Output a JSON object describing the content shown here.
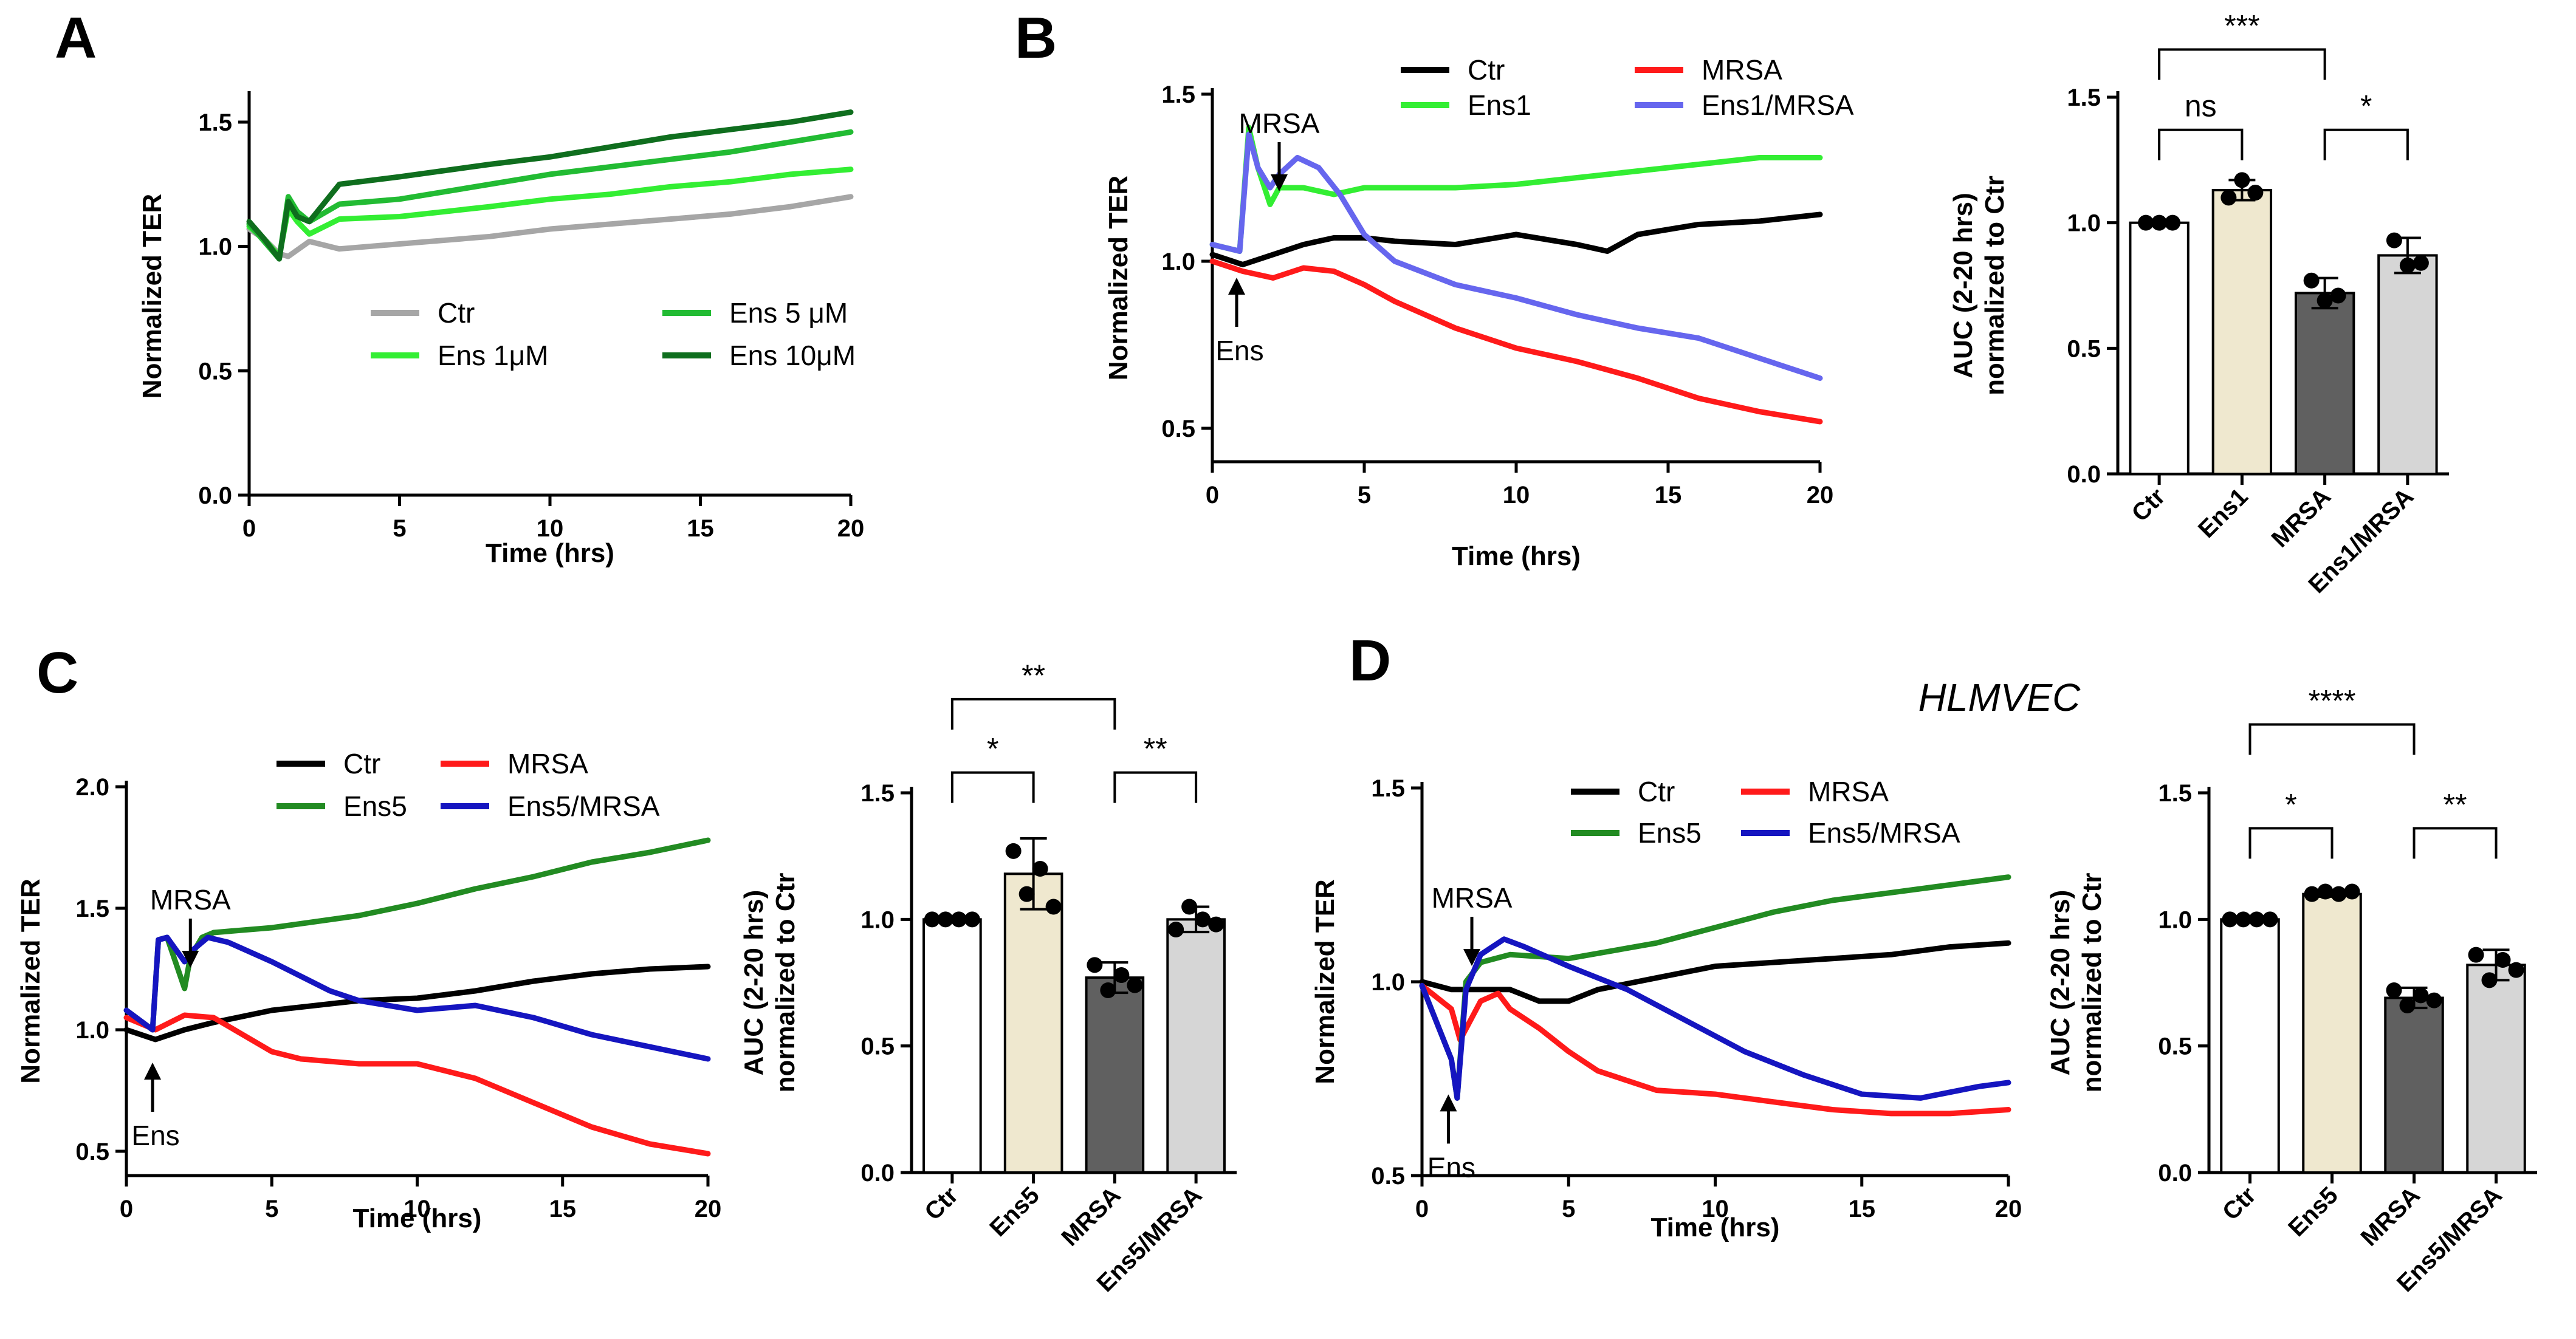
{
  "figure": {
    "extra_label": "HLMVEC"
  },
  "chart_data": [
    {
      "id": "A",
      "panel_label": "A",
      "type": "line",
      "xlabel": "Time (hrs)",
      "ylabel": "Normalized TER",
      "xlim": [
        0,
        20
      ],
      "ylim": [
        0,
        1.6
      ],
      "xticks": [
        0,
        5,
        10,
        15,
        20
      ],
      "yticks": [
        0.0,
        0.5,
        1.0,
        1.5
      ],
      "ytick_labels": [
        "0.0",
        "0.5",
        "1.0",
        "1.5"
      ],
      "legend_cols": 2,
      "series": [
        {
          "name": "Ctr",
          "color": "#a6a6a6",
          "x": [
            0,
            0.5,
            1.0,
            1.3,
            2.0,
            3.0,
            5,
            8,
            10,
            12,
            14,
            16,
            18,
            20
          ],
          "y": [
            1.07,
            1.03,
            0.97,
            0.96,
            1.02,
            0.99,
            1.01,
            1.04,
            1.07,
            1.09,
            1.11,
            1.13,
            1.16,
            1.2
          ]
        },
        {
          "name": "Ens 1μM",
          "color": "#33ee33",
          "x": [
            0,
            0.5,
            1.0,
            1.3,
            1.6,
            2.0,
            3.0,
            5,
            8,
            10,
            12,
            14,
            16,
            18,
            20
          ],
          "y": [
            1.08,
            1.03,
            0.96,
            1.15,
            1.1,
            1.05,
            1.11,
            1.12,
            1.16,
            1.19,
            1.21,
            1.24,
            1.26,
            1.29,
            1.31
          ]
        },
        {
          "name": "Ens 5 μM",
          "color": "#22bb33",
          "x": [
            0,
            0.5,
            1.0,
            1.3,
            1.6,
            2.0,
            3.0,
            5,
            8,
            10,
            12,
            14,
            16,
            18,
            20
          ],
          "y": [
            1.09,
            1.02,
            0.95,
            1.2,
            1.14,
            1.1,
            1.17,
            1.19,
            1.25,
            1.29,
            1.32,
            1.35,
            1.38,
            1.42,
            1.46
          ]
        },
        {
          "name": "Ens 10μM",
          "color": "#0f6e1e",
          "x": [
            0,
            0.5,
            1.0,
            1.3,
            1.6,
            2.0,
            3.0,
            5,
            8,
            10,
            12,
            14,
            16,
            18,
            20
          ],
          "y": [
            1.1,
            1.03,
            0.95,
            1.18,
            1.12,
            1.1,
            1.25,
            1.28,
            1.33,
            1.36,
            1.4,
            1.44,
            1.47,
            1.5,
            1.54
          ]
        }
      ]
    },
    {
      "id": "B_line",
      "panel_label": "B",
      "type": "line",
      "xlabel": "Time (hrs)",
      "ylabel": "Normalized TER",
      "xlim": [
        0,
        20
      ],
      "ylim": [
        0.4,
        1.5
      ],
      "xticks": [
        0,
        5,
        10,
        15,
        20
      ],
      "yticks": [
        0.5,
        1.0,
        1.5
      ],
      "ytick_labels": [
        "0.5",
        "1.0",
        "1.5"
      ],
      "legend_cols": 2,
      "annotations": [
        {
          "text": "MRSA",
          "x": 2.2,
          "y": 1.22,
          "dir": "down"
        },
        {
          "text": "Ens",
          "x": 0.8,
          "y": 0.94,
          "dir": "up"
        }
      ],
      "series": [
        {
          "name": "Ctr",
          "color": "#000000",
          "x": [
            0,
            1,
            2,
            3,
            4,
            5,
            6,
            8,
            10,
            12,
            13,
            14,
            16,
            18,
            20
          ],
          "y": [
            1.02,
            0.99,
            1.02,
            1.05,
            1.07,
            1.07,
            1.06,
            1.05,
            1.08,
            1.05,
            1.03,
            1.08,
            1.11,
            1.12,
            1.14
          ]
        },
        {
          "name": "MRSA",
          "color": "#ff1a1a",
          "x": [
            0,
            1,
            2,
            3,
            4,
            5,
            6,
            8,
            10,
            12,
            14,
            16,
            18,
            20
          ],
          "y": [
            1.0,
            0.97,
            0.95,
            0.98,
            0.97,
            0.93,
            0.88,
            0.8,
            0.74,
            0.7,
            0.65,
            0.59,
            0.55,
            0.52
          ]
        },
        {
          "name": "Ens1",
          "color": "#33ee33",
          "x": [
            0,
            0.9,
            1.2,
            1.5,
            1.9,
            2.2,
            3,
            4,
            5,
            8,
            10,
            12,
            14,
            16,
            18,
            20
          ],
          "y": [
            1.05,
            1.03,
            1.4,
            1.28,
            1.17,
            1.22,
            1.22,
            1.2,
            1.22,
            1.22,
            1.23,
            1.25,
            1.27,
            1.29,
            1.31,
            1.31
          ]
        },
        {
          "name": "Ens1/MRSA",
          "color": "#6666ee",
          "x": [
            0,
            0.9,
            1.2,
            1.5,
            1.9,
            2.2,
            2.8,
            3.5,
            4.2,
            5,
            6,
            8,
            10,
            12,
            14,
            16,
            18,
            20
          ],
          "y": [
            1.05,
            1.03,
            1.38,
            1.28,
            1.22,
            1.26,
            1.31,
            1.28,
            1.2,
            1.08,
            1.0,
            0.93,
            0.89,
            0.84,
            0.8,
            0.77,
            0.71,
            0.65
          ]
        }
      ]
    },
    {
      "id": "B_bar",
      "type": "bar",
      "ylabel_lines": [
        "AUC (2-20 hrs)",
        "normalized to Ctr"
      ],
      "ylim": [
        0,
        1.5
      ],
      "yticks": [
        0.0,
        0.5,
        1.0,
        1.5
      ],
      "ytick_labels": [
        "0.0",
        "0.5",
        "1.0",
        "1.5"
      ],
      "categories": [
        "Ctr",
        "Ens1",
        "MRSA",
        "Ens1/MRSA"
      ],
      "values": [
        1.0,
        1.13,
        0.72,
        0.87
      ],
      "errors": [
        0.0,
        0.04,
        0.06,
        0.07
      ],
      "bar_colors": [
        "#ffffff",
        "#efe8cf",
        "#606060",
        "#d6d6d6"
      ],
      "points": [
        [
          1.0,
          1.0,
          1.0
        ],
        [
          1.1,
          1.17,
          1.12
        ],
        [
          0.77,
          0.69,
          0.71
        ],
        [
          0.93,
          0.83,
          0.84
        ]
      ],
      "significance": [
        {
          "from": 0,
          "to": 2,
          "label": "***",
          "y": 1.69
        },
        {
          "from": 0,
          "to": 1,
          "label": "ns",
          "y": 1.37
        },
        {
          "from": 2,
          "to": 3,
          "label": "*",
          "y": 1.37
        }
      ]
    },
    {
      "id": "C_line",
      "panel_label": "C",
      "type": "line",
      "xlabel": "Time (hrs)",
      "ylabel": "Normalized TER",
      "xlim": [
        0,
        20
      ],
      "ylim": [
        0.4,
        2.0
      ],
      "xticks": [
        0,
        5,
        10,
        15,
        20
      ],
      "yticks": [
        0.5,
        1.0,
        1.5,
        2.0
      ],
      "ytick_labels": [
        "0.5",
        "1.0",
        "1.5",
        "2.0"
      ],
      "legend_cols": 2,
      "annotations": [
        {
          "text": "MRSA",
          "x": 2.2,
          "y": 1.27,
          "dir": "down"
        },
        {
          "text": "Ens",
          "x": 0.9,
          "y": 0.85,
          "dir": "up"
        }
      ],
      "series": [
        {
          "name": "Ctr",
          "color": "#000000",
          "x": [
            0,
            1,
            2,
            3,
            5,
            8,
            10,
            12,
            14,
            16,
            18,
            20
          ],
          "y": [
            1.0,
            0.96,
            1.0,
            1.03,
            1.08,
            1.12,
            1.13,
            1.16,
            1.2,
            1.23,
            1.25,
            1.26
          ]
        },
        {
          "name": "MRSA",
          "color": "#ff1a1a",
          "x": [
            0,
            1,
            2,
            3,
            4,
            5,
            6,
            8,
            10,
            12,
            14,
            16,
            18,
            20
          ],
          "y": [
            1.05,
            1.0,
            1.06,
            1.05,
            0.98,
            0.91,
            0.88,
            0.86,
            0.86,
            0.8,
            0.7,
            0.6,
            0.53,
            0.49
          ]
        },
        {
          "name": "Ens5",
          "color": "#228b22",
          "x": [
            0,
            0.9,
            1.1,
            1.4,
            2.0,
            2.2,
            2.6,
            3.0,
            5,
            8,
            10,
            12,
            14,
            16,
            18,
            20
          ],
          "y": [
            1.08,
            1.0,
            1.37,
            1.38,
            1.17,
            1.3,
            1.38,
            1.4,
            1.42,
            1.47,
            1.52,
            1.58,
            1.63,
            1.69,
            1.73,
            1.78
          ]
        },
        {
          "name": "Ens5/MRSA",
          "color": "#1515c0",
          "x": [
            0,
            0.9,
            1.1,
            1.4,
            2.0,
            2.3,
            2.8,
            3.5,
            5,
            7,
            8,
            10,
            12,
            14,
            16,
            18,
            20
          ],
          "y": [
            1.08,
            1.0,
            1.37,
            1.38,
            1.28,
            1.33,
            1.38,
            1.36,
            1.28,
            1.16,
            1.12,
            1.08,
            1.1,
            1.05,
            0.98,
            0.93,
            0.88
          ]
        }
      ]
    },
    {
      "id": "C_bar",
      "type": "bar",
      "ylabel_lines": [
        "AUC (2-20 hrs)",
        "normalized to Ctr"
      ],
      "ylim": [
        0,
        1.5
      ],
      "yticks": [
        0.0,
        0.5,
        1.0,
        1.5
      ],
      "ytick_labels": [
        "0.0",
        "0.5",
        "1.0",
        "1.5"
      ],
      "categories": [
        "Ctr",
        "Ens5",
        "MRSA",
        "Ens5/MRSA"
      ],
      "values": [
        1.0,
        1.18,
        0.77,
        1.0
      ],
      "errors": [
        0.0,
        0.14,
        0.06,
        0.05
      ],
      "bar_colors": [
        "#ffffff",
        "#efe8cf",
        "#606060",
        "#d6d6d6"
      ],
      "points": [
        [
          1.0,
          1.0,
          1.0,
          1.0
        ],
        [
          1.27,
          1.1,
          1.2,
          1.05
        ],
        [
          0.82,
          0.72,
          0.78,
          0.74
        ],
        [
          0.96,
          1.05,
          1.0,
          0.98
        ]
      ],
      "significance": [
        {
          "from": 0,
          "to": 2,
          "label": "**",
          "y": 1.87
        },
        {
          "from": 0,
          "to": 1,
          "label": "*",
          "y": 1.58
        },
        {
          "from": 2,
          "to": 3,
          "label": "**",
          "y": 1.58
        }
      ]
    },
    {
      "id": "D_line",
      "panel_label": "D",
      "type": "line",
      "xlabel": "Time (hrs)",
      "ylabel": "Normalized TER",
      "xlim": [
        0,
        20
      ],
      "ylim": [
        0.5,
        1.5
      ],
      "xticks": [
        0,
        5,
        10,
        15,
        20
      ],
      "yticks": [
        0.5,
        1.0,
        1.5
      ],
      "ytick_labels": [
        "0.5",
        "1.0",
        "1.5"
      ],
      "legend_cols": 2,
      "annotations": [
        {
          "text": "MRSA",
          "x": 1.7,
          "y": 1.05,
          "dir": "down"
        },
        {
          "text": "Ens",
          "x": 0.9,
          "y": 0.7,
          "dir": "up"
        }
      ],
      "series": [
        {
          "name": "Ctr",
          "color": "#000000",
          "x": [
            0,
            1,
            2,
            3,
            4,
            5,
            6,
            8,
            10,
            12,
            14,
            16,
            18,
            20
          ],
          "y": [
            1.0,
            0.98,
            0.98,
            0.98,
            0.95,
            0.95,
            0.98,
            1.01,
            1.04,
            1.05,
            1.06,
            1.07,
            1.09,
            1.1
          ]
        },
        {
          "name": "MRSA",
          "color": "#ff1a1a",
          "x": [
            0,
            1,
            1.3,
            2,
            2.6,
            3,
            4,
            5,
            6,
            8,
            10,
            12,
            14,
            16,
            18,
            20
          ],
          "y": [
            0.99,
            0.93,
            0.85,
            0.95,
            0.97,
            0.93,
            0.88,
            0.82,
            0.77,
            0.72,
            0.71,
            0.69,
            0.67,
            0.66,
            0.66,
            0.67
          ]
        },
        {
          "name": "Ens5",
          "color": "#228b22",
          "x": [
            0,
            1.0,
            1.2,
            1.5,
            2.0,
            3,
            5,
            8,
            10,
            12,
            14,
            16,
            18,
            20
          ],
          "y": [
            0.99,
            0.8,
            0.7,
            1.0,
            1.05,
            1.07,
            1.06,
            1.1,
            1.14,
            1.18,
            1.21,
            1.23,
            1.25,
            1.27
          ]
        },
        {
          "name": "Ens5/MRSA",
          "color": "#1515c0",
          "x": [
            0,
            1.0,
            1.2,
            1.5,
            2.0,
            2.8,
            3.5,
            5,
            7,
            9,
            11,
            13,
            15,
            17,
            19,
            20
          ],
          "y": [
            0.99,
            0.8,
            0.7,
            0.98,
            1.07,
            1.11,
            1.09,
            1.04,
            0.98,
            0.9,
            0.82,
            0.76,
            0.71,
            0.7,
            0.73,
            0.74
          ]
        }
      ]
    },
    {
      "id": "D_bar",
      "type": "bar",
      "ylabel_lines": [
        "AUC (2-20 hrs)",
        "normalized to Ctr"
      ],
      "ylim": [
        0,
        1.5
      ],
      "yticks": [
        0.0,
        0.5,
        1.0,
        1.5
      ],
      "ytick_labels": [
        "0.0",
        "0.5",
        "1.0",
        "1.5"
      ],
      "categories": [
        "Ctr",
        "Ens5",
        "MRSA",
        "Ens5/MRSA"
      ],
      "values": [
        1.0,
        1.1,
        0.69,
        0.82
      ],
      "errors": [
        0.0,
        0.01,
        0.04,
        0.06
      ],
      "bar_colors": [
        "#ffffff",
        "#efe8cf",
        "#606060",
        "#d6d6d6"
      ],
      "points": [
        [
          1.0,
          1.0,
          1.0,
          1.0
        ],
        [
          1.1,
          1.11,
          1.1,
          1.11
        ],
        [
          0.72,
          0.66,
          0.7,
          0.68
        ],
        [
          0.86,
          0.76,
          0.84,
          0.8
        ]
      ],
      "significance": [
        {
          "from": 0,
          "to": 2,
          "label": "****",
          "y": 1.77
        },
        {
          "from": 0,
          "to": 1,
          "label": "*",
          "y": 1.36
        },
        {
          "from": 2,
          "to": 3,
          "label": "**",
          "y": 1.36
        }
      ]
    }
  ]
}
